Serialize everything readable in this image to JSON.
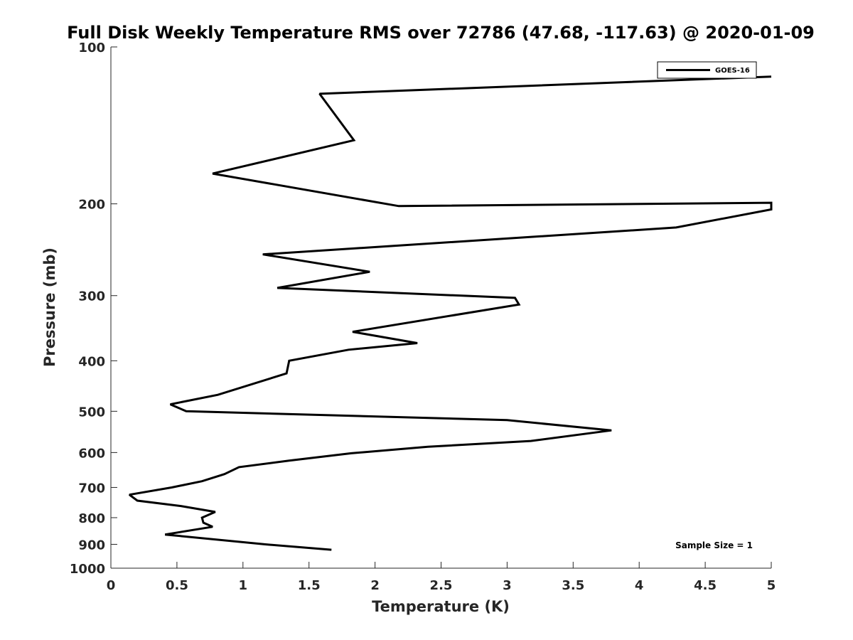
{
  "chart_data": {
    "type": "line",
    "title": "Full Disk Weekly Temperature RMS over 72786 (47.68, -117.63) @ 2020-01-09",
    "xlabel": "Temperature (K)",
    "ylabel": "Pressure (mb)",
    "xlim": [
      0,
      5
    ],
    "ylim": [
      1000,
      100
    ],
    "yscale": "log",
    "y_reversed": true,
    "grid": false,
    "legend_position": "top-right",
    "x_ticks": [
      0,
      0.5,
      1,
      1.5,
      2,
      2.5,
      3,
      3.5,
      4,
      4.5,
      5
    ],
    "x_tick_labels": [
      "0",
      "0.5",
      "1",
      "1.5",
      "2",
      "2.5",
      "3",
      "3.5",
      "4",
      "4.5",
      "5"
    ],
    "y_ticks": [
      100,
      200,
      300,
      400,
      500,
      600,
      700,
      800,
      900,
      1000
    ],
    "y_tick_labels": [
      "100",
      "200",
      "300",
      "400",
      "500",
      "600",
      "700",
      "800",
      "900",
      "1000"
    ],
    "series": [
      {
        "name": "GOES-16",
        "color": "#000000",
        "points": [
          [
            5.0,
            114
          ],
          [
            1.58,
            123
          ],
          [
            1.84,
            151
          ],
          [
            0.77,
            175
          ],
          [
            2.18,
            202
          ],
          [
            5.0,
            199
          ],
          [
            5.0,
            205
          ],
          [
            4.28,
            222
          ],
          [
            1.15,
            250
          ],
          [
            1.96,
            270
          ],
          [
            1.26,
            290
          ],
          [
            3.06,
            303
          ],
          [
            3.09,
            312
          ],
          [
            1.83,
            352
          ],
          [
            2.32,
            370
          ],
          [
            1.8,
            381
          ],
          [
            1.35,
            400
          ],
          [
            1.33,
            423
          ],
          [
            0.81,
            465
          ],
          [
            0.45,
            485
          ],
          [
            0.57,
            500
          ],
          [
            3.0,
            520
          ],
          [
            3.79,
            544
          ],
          [
            3.18,
            570
          ],
          [
            2.4,
            585
          ],
          [
            1.82,
            602
          ],
          [
            1.35,
            622
          ],
          [
            0.97,
            640
          ],
          [
            0.86,
            660
          ],
          [
            0.69,
            681
          ],
          [
            0.46,
            700
          ],
          [
            0.14,
            723
          ],
          [
            0.2,
            742
          ],
          [
            0.53,
            760
          ],
          [
            0.79,
            780
          ],
          [
            0.69,
            800
          ],
          [
            0.7,
            818
          ],
          [
            0.77,
            833
          ],
          [
            0.41,
            862
          ],
          [
            1.17,
            900
          ],
          [
            1.67,
            922
          ]
        ]
      }
    ],
    "annotations": [
      "Sample Size = 1"
    ]
  }
}
